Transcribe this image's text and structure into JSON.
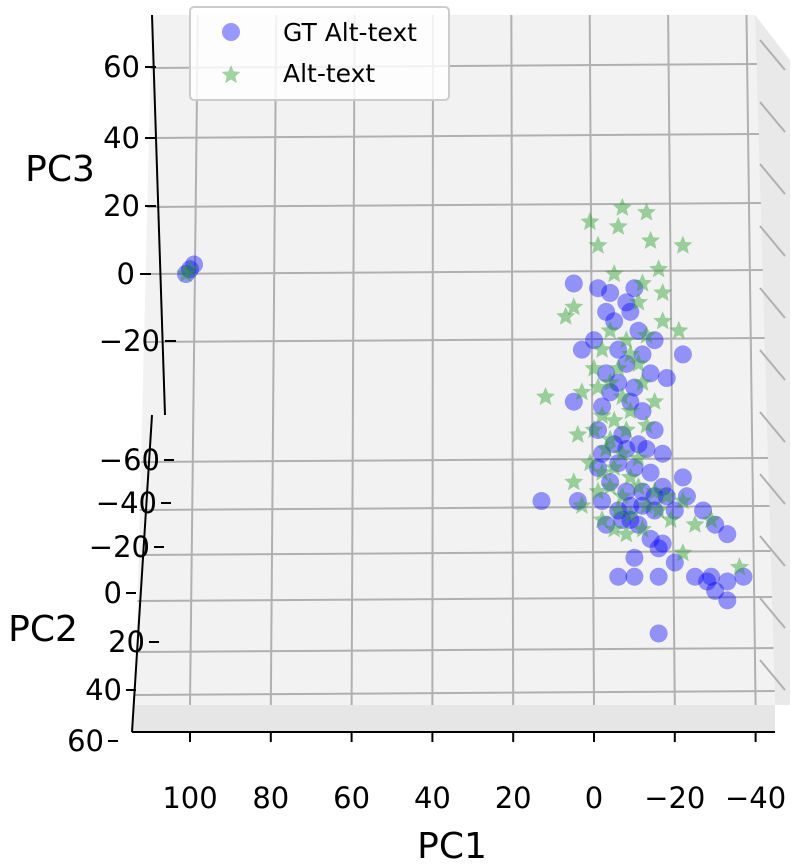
{
  "chart_data": {
    "type": "scatter",
    "projection": "3d",
    "title": "",
    "axes": {
      "x": {
        "label": "PC1",
        "ticks": [
          "100",
          "80",
          "60",
          "40",
          "20",
          "0",
          "−20",
          "−40"
        ]
      },
      "y": {
        "label": "PC2",
        "ticks": [
          "−60",
          "−40",
          "−20",
          "0",
          "20",
          "40",
          "60"
        ]
      },
      "z": {
        "label": "PC3",
        "ticks": [
          "60",
          "40",
          "20",
          "0",
          "−20"
        ]
      }
    },
    "legend": {
      "placement": "top-left",
      "entries": [
        {
          "label": "GT Alt-text",
          "marker": "circle",
          "color": "#0000ff"
        },
        {
          "label": "Alt-text",
          "marker": "star",
          "color": "#2ca02c"
        }
      ]
    },
    "series": [
      {
        "name": "GT Alt-text",
        "marker": "circle",
        "color": "#0000ff",
        "points": [
          [
            100,
            1
          ],
          [
            101,
            0
          ],
          [
            99,
            2
          ],
          [
            5,
            -2
          ],
          [
            -1,
            -3
          ],
          [
            -4,
            -4
          ],
          [
            -10,
            -3
          ],
          [
            -8,
            -6
          ],
          [
            -3,
            -8
          ],
          [
            -5,
            -10
          ],
          [
            -9,
            -8
          ],
          [
            -11,
            -12
          ],
          [
            0,
            -14
          ],
          [
            -6,
            -16
          ],
          [
            -12,
            -17
          ],
          [
            -15,
            -14
          ],
          [
            -22,
            -17
          ],
          [
            -8,
            -19
          ],
          [
            -3,
            -21
          ],
          [
            -6,
            -23
          ],
          [
            -10,
            -24
          ],
          [
            -14,
            -21
          ],
          [
            -18,
            -22
          ],
          [
            -4,
            -25
          ],
          [
            -9,
            -27
          ],
          [
            -12,
            -29
          ],
          [
            -2,
            -28
          ],
          [
            3,
            -16
          ],
          [
            5,
            -27
          ],
          [
            -1,
            -33
          ],
          [
            -7,
            -34
          ],
          [
            -11,
            -36
          ],
          [
            -15,
            -33
          ],
          [
            -5,
            -36
          ],
          [
            -8,
            -37
          ],
          [
            -2,
            -38
          ],
          [
            -13,
            -37
          ],
          [
            -17,
            -38
          ],
          [
            -6,
            -40
          ],
          [
            -1,
            -41
          ],
          [
            -10,
            -41
          ],
          [
            -14,
            -42
          ],
          [
            -17,
            -45
          ],
          [
            -22,
            -43
          ],
          [
            -4,
            -44
          ],
          [
            -8,
            -46
          ],
          [
            -12,
            -46
          ],
          [
            -15,
            -47
          ],
          [
            -18,
            -47
          ],
          [
            -23,
            -47
          ],
          [
            13,
            -48
          ],
          [
            4,
            -48
          ],
          [
            -2,
            -48
          ],
          [
            -6,
            -50
          ],
          [
            -9,
            -49
          ],
          [
            -12,
            -49
          ],
          [
            -15,
            -50
          ],
          [
            -20,
            -50
          ],
          [
            -27,
            -50
          ],
          [
            -30,
            -53
          ],
          [
            -33,
            -55
          ],
          [
            -9,
            -52
          ],
          [
            -11,
            -53
          ],
          [
            -3,
            -53
          ],
          [
            -7,
            -52
          ],
          [
            -14,
            -56
          ],
          [
            -17,
            -57
          ],
          [
            -16,
            -58
          ],
          [
            -20,
            -61
          ],
          [
            -10,
            -60
          ],
          [
            -25,
            -64
          ],
          [
            -28,
            -65
          ],
          [
            -29,
            -64
          ],
          [
            -33,
            -65
          ],
          [
            -37,
            -64
          ],
          [
            -6,
            -64
          ],
          [
            -10,
            -64
          ],
          [
            -16,
            -64
          ],
          [
            -30,
            -67
          ],
          [
            -33,
            -69
          ],
          [
            -16,
            -76
          ]
        ]
      },
      {
        "name": "Alt-text",
        "marker": "star",
        "color": "#2ca02c",
        "points": [
          [
            100,
            1
          ],
          [
            101,
            0
          ],
          [
            -7,
            14
          ],
          [
            -13,
            13
          ],
          [
            -6,
            10
          ],
          [
            1,
            11
          ],
          [
            -14,
            7
          ],
          [
            -22,
            6
          ],
          [
            -1,
            6
          ],
          [
            -16,
            1
          ],
          [
            -5,
            0
          ],
          [
            -12,
            -2
          ],
          [
            -17,
            -4
          ],
          [
            5,
            -7
          ],
          [
            -11,
            -6
          ],
          [
            7,
            -9
          ],
          [
            -17,
            -10
          ],
          [
            -21,
            -12
          ],
          [
            -4,
            -12
          ],
          [
            -8,
            -14
          ],
          [
            -13,
            -13
          ],
          [
            -2,
            -16
          ],
          [
            -9,
            -17
          ],
          [
            0,
            -20
          ],
          [
            -6,
            -20
          ],
          [
            -11,
            -19
          ],
          [
            -4,
            -23
          ],
          [
            -7,
            -26
          ],
          [
            -12,
            -23
          ],
          [
            -15,
            -27
          ],
          [
            12,
            -26
          ],
          [
            3,
            -25
          ],
          [
            -1,
            -24
          ],
          [
            -9,
            -29
          ],
          [
            -2,
            -30
          ],
          [
            -5,
            -31
          ],
          [
            0,
            -33
          ],
          [
            4,
            -34
          ],
          [
            -4,
            -35
          ],
          [
            -8,
            -33
          ],
          [
            -13,
            -32
          ],
          [
            -3,
            -37
          ],
          [
            -7,
            -38
          ],
          [
            -11,
            -39
          ],
          [
            1,
            -40
          ],
          [
            -2,
            -42
          ],
          [
            -5,
            -41
          ],
          [
            -9,
            -43
          ],
          [
            5,
            -44
          ],
          [
            -1,
            -46
          ],
          [
            -4,
            -45
          ],
          [
            -7,
            -47
          ],
          [
            -11,
            -45
          ],
          [
            -15,
            -46
          ],
          [
            3,
            -49
          ],
          [
            -18,
            -47
          ],
          [
            -22,
            -48
          ],
          [
            -13,
            -49
          ],
          [
            -6,
            -50
          ],
          [
            -9,
            -51
          ],
          [
            -16,
            -50
          ],
          [
            -29,
            -52
          ],
          [
            -25,
            -53
          ],
          [
            -19,
            -52
          ],
          [
            -12,
            -54
          ],
          [
            -2,
            -52
          ],
          [
            -5,
            -54
          ],
          [
            -8,
            -55
          ],
          [
            -22,
            -59
          ],
          [
            -36,
            -62
          ]
        ]
      }
    ]
  }
}
